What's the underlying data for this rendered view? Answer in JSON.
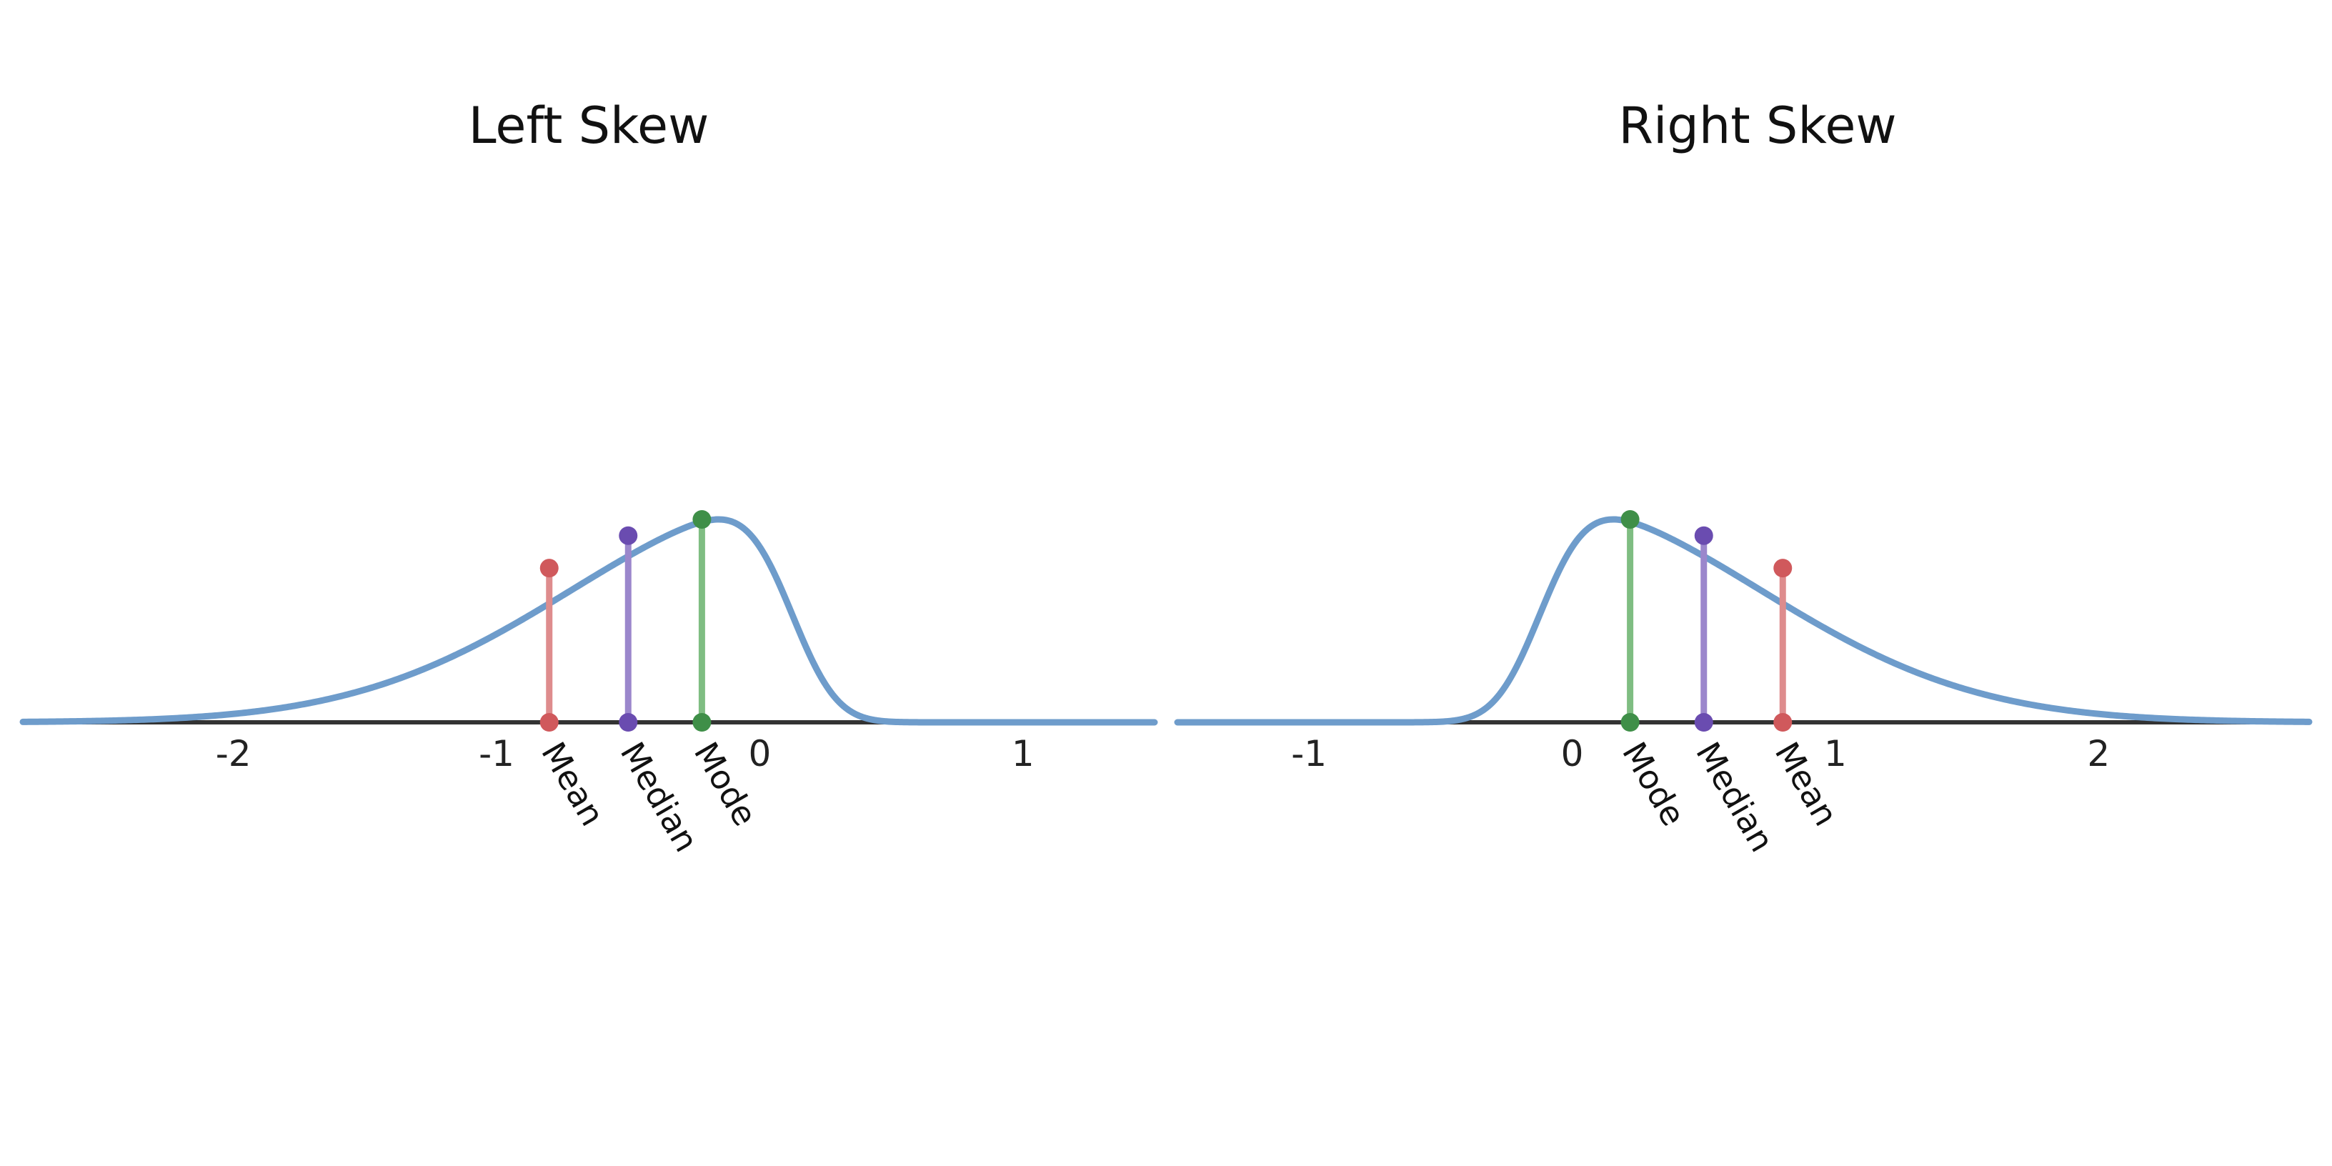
{
  "chart_data": [
    {
      "type": "line",
      "title": "Left Skew",
      "xlim": [
        -2.8,
        1.5
      ],
      "ylim": [
        0,
        1
      ],
      "grid": false,
      "x_ticks": [
        -2,
        -1,
        0,
        1
      ],
      "x_tick_labels": [
        "-2",
        "-1",
        "0",
        "1"
      ],
      "curve": {
        "distribution": "skew-normal",
        "location": 0.12,
        "scale": 0.83,
        "shape": -6,
        "color": "#6e9ccb"
      },
      "markers": [
        {
          "label": "Mean",
          "x": -0.8,
          "y": 0.76,
          "color": "#d0595c",
          "line_color": "#de8c8d"
        },
        {
          "label": "Median",
          "x": -0.5,
          "y": 0.92,
          "color": "#6a4cb0",
          "line_color": "#9b87cc"
        },
        {
          "label": "Mode",
          "x": -0.22,
          "y": 1.0,
          "color": "#3f8f48",
          "line_color": "#7fbd82"
        }
      ],
      "axis_color": "#333333"
    },
    {
      "type": "line",
      "title": "Right Skew",
      "xlim": [
        -1.5,
        2.8
      ],
      "ylim": [
        0,
        1
      ],
      "grid": false,
      "x_ticks": [
        -1,
        0,
        1,
        2
      ],
      "x_tick_labels": [
        "-1",
        "0",
        "1",
        "2"
      ],
      "curve": {
        "distribution": "skew-normal",
        "location": -0.12,
        "scale": 0.83,
        "shape": 6,
        "color": "#6e9ccb"
      },
      "markers": [
        {
          "label": "Mode",
          "x": 0.22,
          "y": 1.0,
          "color": "#3f8f48",
          "line_color": "#7fbd82"
        },
        {
          "label": "Median",
          "x": 0.5,
          "y": 0.92,
          "color": "#6a4cb0",
          "line_color": "#9b87cc"
        },
        {
          "label": "Mean",
          "x": 0.8,
          "y": 0.76,
          "color": "#d0595c",
          "line_color": "#de8c8d"
        }
      ],
      "axis_color": "#333333"
    }
  ]
}
